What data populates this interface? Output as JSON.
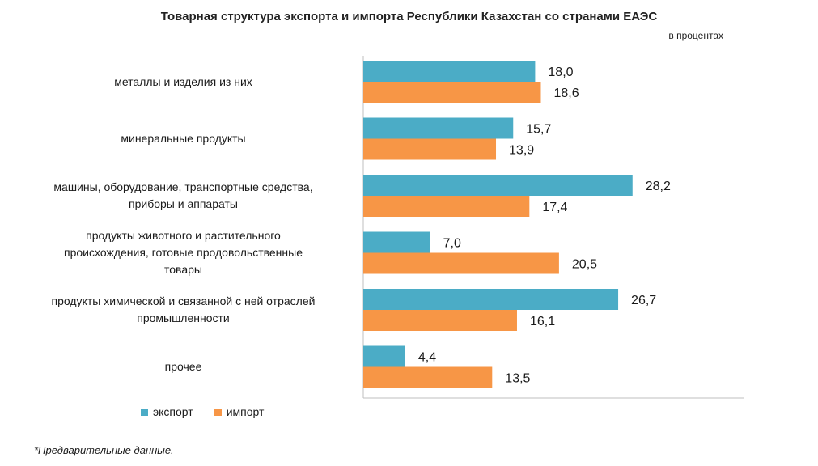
{
  "colors": {
    "export": "#4bacc6",
    "import": "#f79646",
    "axis": "#bfbfbf"
  },
  "chart_data": {
    "type": "bar",
    "orientation": "horizontal",
    "title": "Товарная структура экспорта и импорта Республики Казахстан со странами ЕАЭС",
    "subtitle": "в процентах",
    "categories": [
      "металлы и изделия из них",
      "минеральные продукты",
      "машины, оборудование, транспортные средства, приборы и аппараты",
      "продукты животного и растительного происхождения, готовые продовольственные товары",
      "продукты химической и связанной с ней отраслей промышленности",
      "прочее"
    ],
    "category_lines": [
      [
        "металлы и изделия из них"
      ],
      [
        "минеральные продукты"
      ],
      [
        "машины, оборудование, транспортные средства,",
        "приборы и аппараты"
      ],
      [
        "продукты животного и растительного",
        "происхождения, готовые продовольственные",
        "товары"
      ],
      [
        "продукты химической и связанной с ней отраслей",
        "промышленности"
      ],
      [
        "прочее"
      ]
    ],
    "series": [
      {
        "name": "экспорт",
        "values": [
          18.0,
          15.7,
          28.2,
          7.0,
          26.7,
          4.4
        ],
        "labels": [
          "18,0",
          "15,7",
          "28,2",
          "7,0",
          "26,7",
          "4,4"
        ]
      },
      {
        "name": "импорт",
        "values": [
          18.6,
          13.9,
          17.4,
          20.5,
          16.1,
          13.5
        ],
        "labels": [
          "18,6",
          "13,9",
          "17,4",
          "20,5",
          "16,1",
          "13,5"
        ]
      }
    ],
    "xlim": [
      0,
      40
    ],
    "grid": false,
    "legend": "bottom-left"
  },
  "footnote": "*Предварительные данные."
}
